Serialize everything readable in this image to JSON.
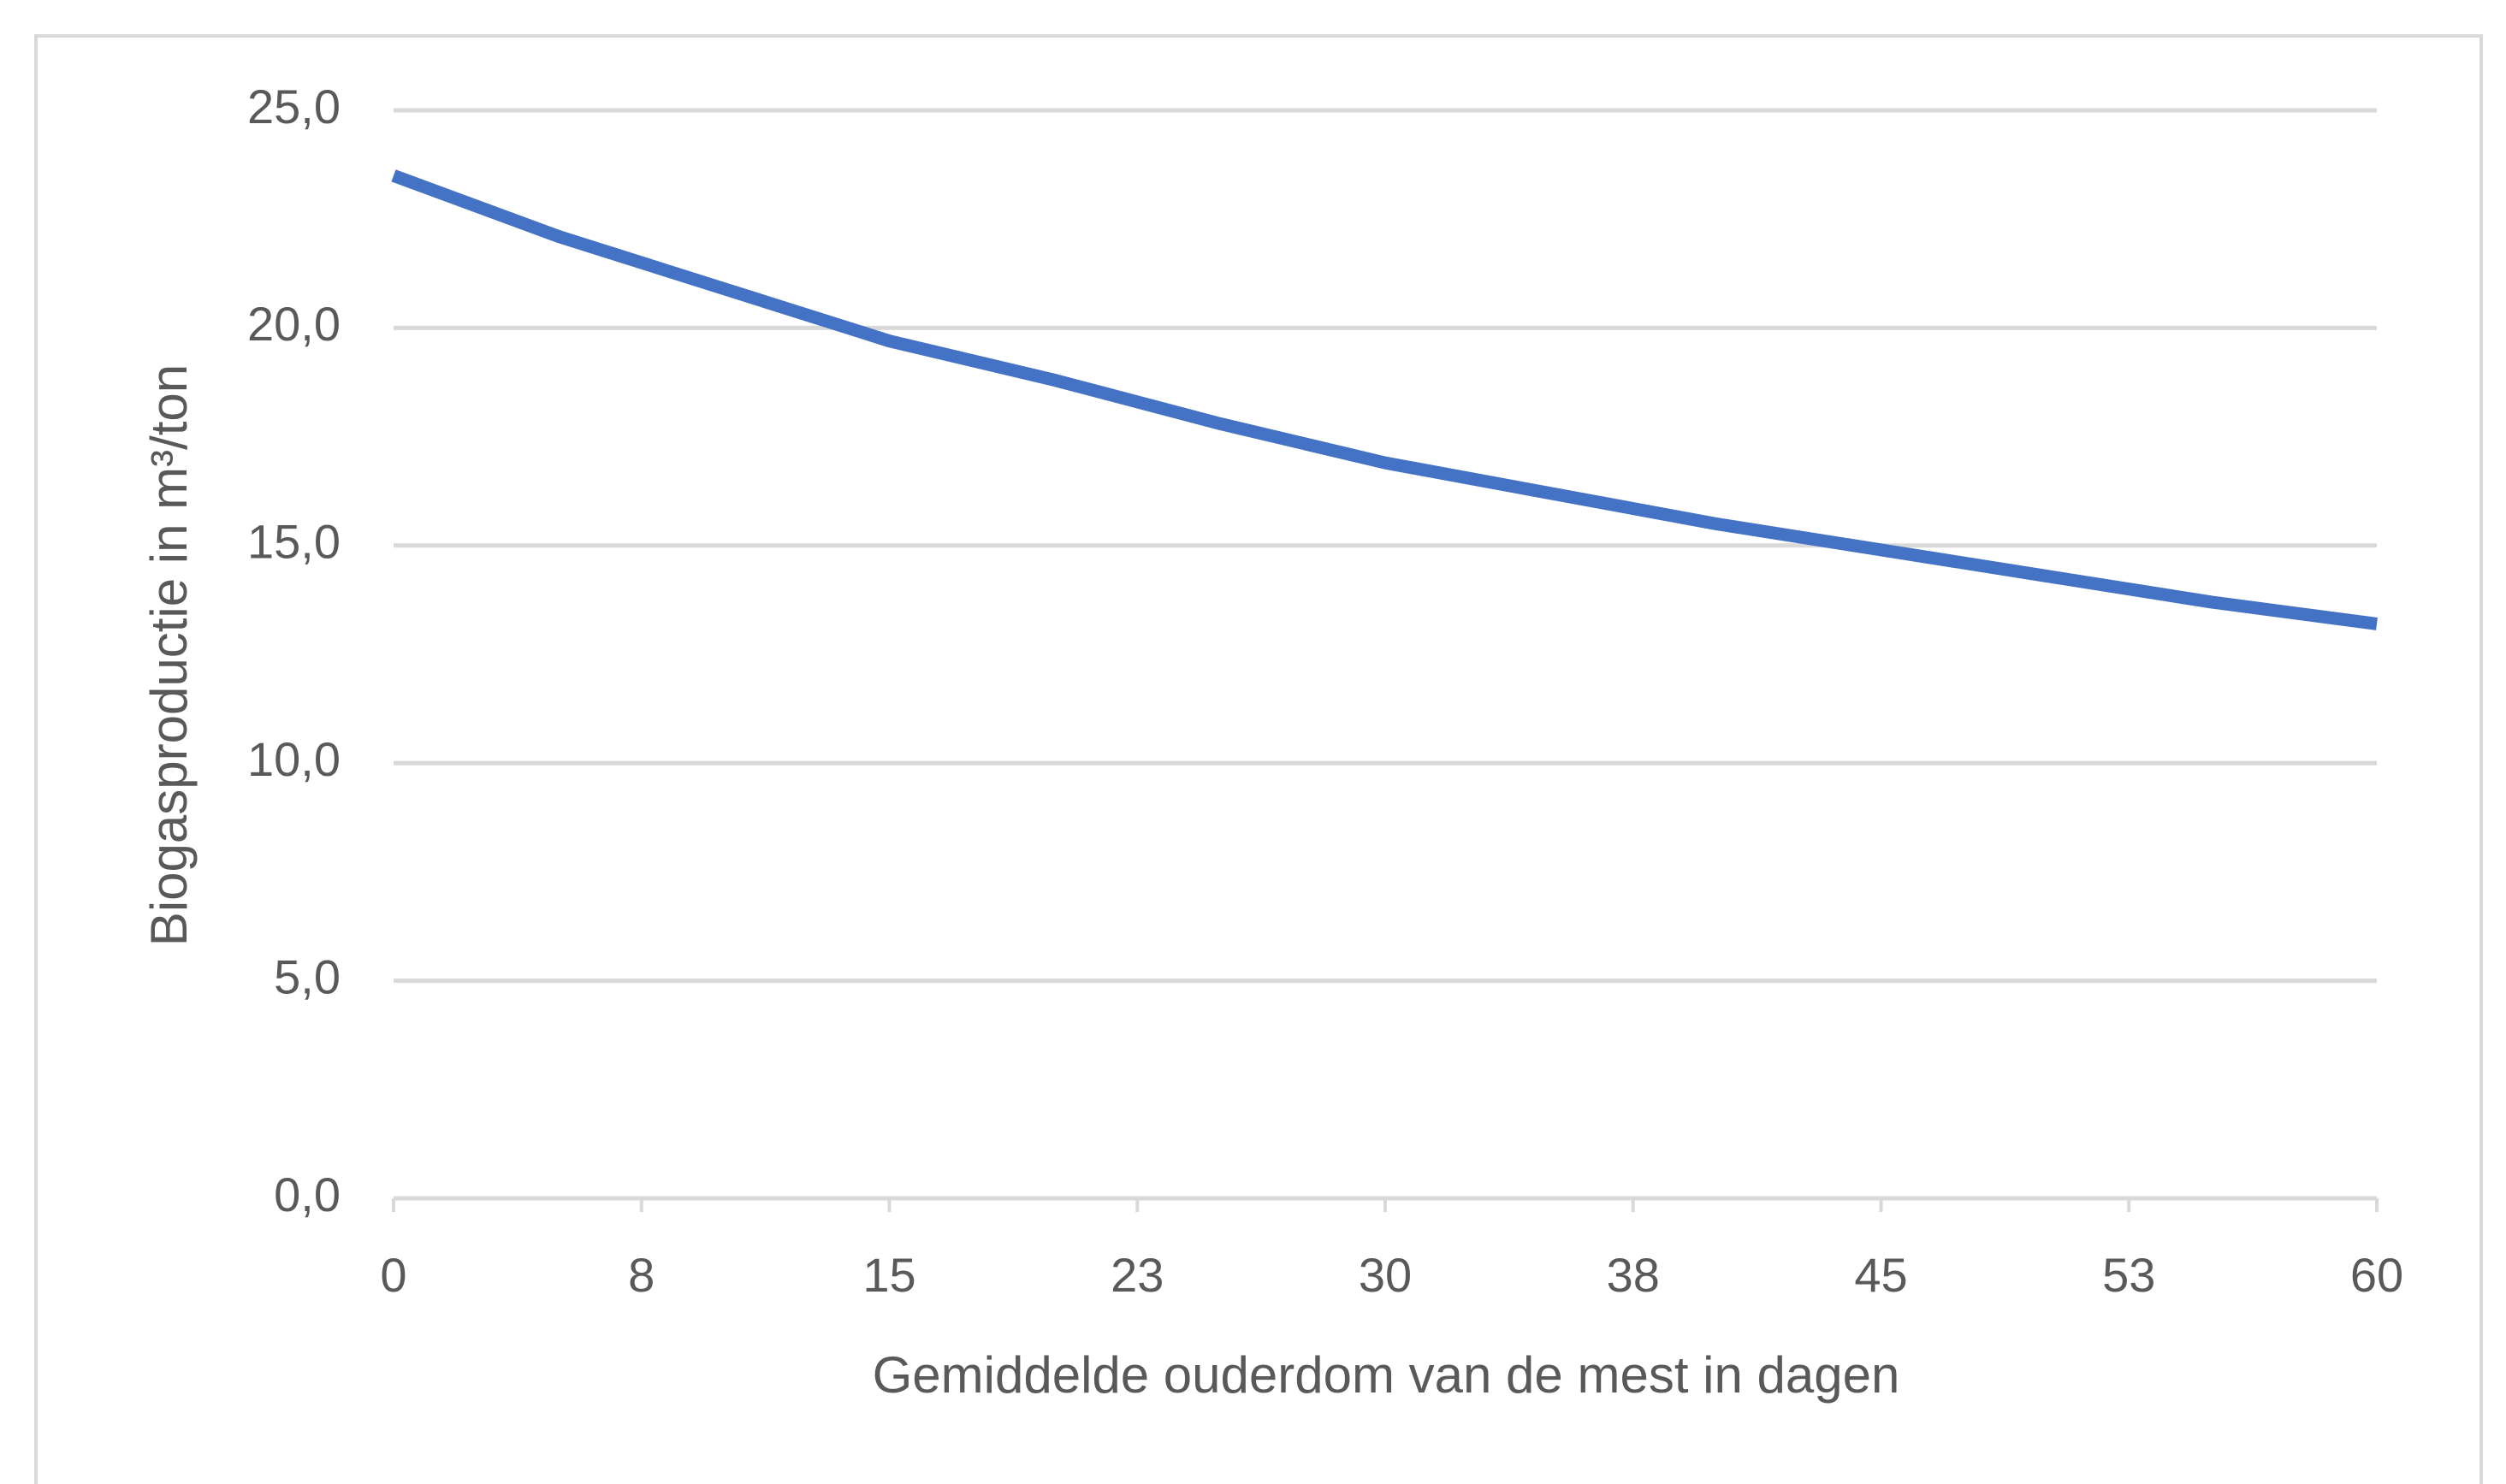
{
  "chart_data": {
    "type": "line",
    "x_label": "Gemiddelde ouderdom van de mest in dagen",
    "y_label": "Biogasproductie in m³/ton",
    "x": [
      0,
      5,
      10,
      15,
      20,
      25,
      30,
      35,
      40,
      45,
      50,
      55,
      60
    ],
    "series": [
      {
        "name": "Biogasproductie",
        "color": "#4472c4",
        "values": [
          23.5,
          22.1,
          20.9,
          19.7,
          18.8,
          17.8,
          16.9,
          16.2,
          15.5,
          14.9,
          14.3,
          13.7,
          13.2
        ]
      }
    ],
    "xlim": [
      0,
      60
    ],
    "xticks": [
      0,
      {
        "value": 7.5,
        "label": "8"
      },
      15,
      {
        "value": 22.5,
        "label": "23"
      },
      30,
      {
        "value": 37.5,
        "label": "38"
      },
      45,
      {
        "value": 52.5,
        "label": "53"
      },
      60
    ],
    "ylim": [
      0,
      25
    ],
    "yticks": [
      {
        "value": 0,
        "label": "0,0"
      },
      {
        "value": 5,
        "label": "5,0"
      },
      {
        "value": 10,
        "label": "10,0"
      },
      {
        "value": 15,
        "label": "15,0"
      },
      {
        "value": 20,
        "label": "20,0"
      },
      {
        "value": 25,
        "label": "25,0"
      }
    ],
    "grid": true
  }
}
